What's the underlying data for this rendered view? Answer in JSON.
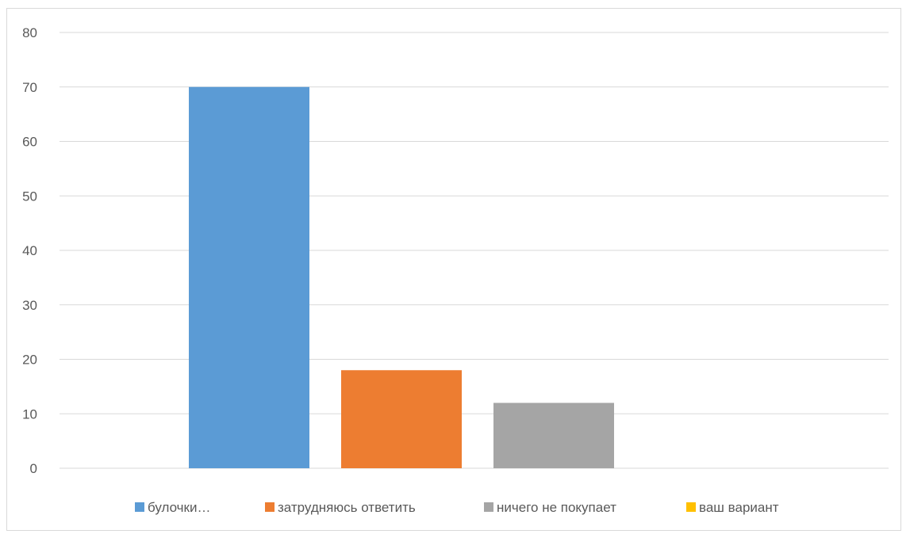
{
  "chart_data": {
    "type": "bar",
    "title": "",
    "xlabel": "",
    "ylabel": "",
    "ylim": [
      0,
      80
    ],
    "yticks": [
      0,
      10,
      20,
      30,
      40,
      50,
      60,
      70,
      80
    ],
    "grid": true,
    "legend_position": "bottom",
    "series": [
      {
        "name": "булочки…",
        "value": 70,
        "color": "#5b9bd5"
      },
      {
        "name": "затрудняюсь ответить",
        "value": 18,
        "color": "#ed7d31"
      },
      {
        "name": "ничего не покупает",
        "value": 12,
        "color": "#a5a5a5"
      },
      {
        "name": "ваш вариант",
        "value": 0,
        "color": "#ffc000"
      }
    ]
  }
}
